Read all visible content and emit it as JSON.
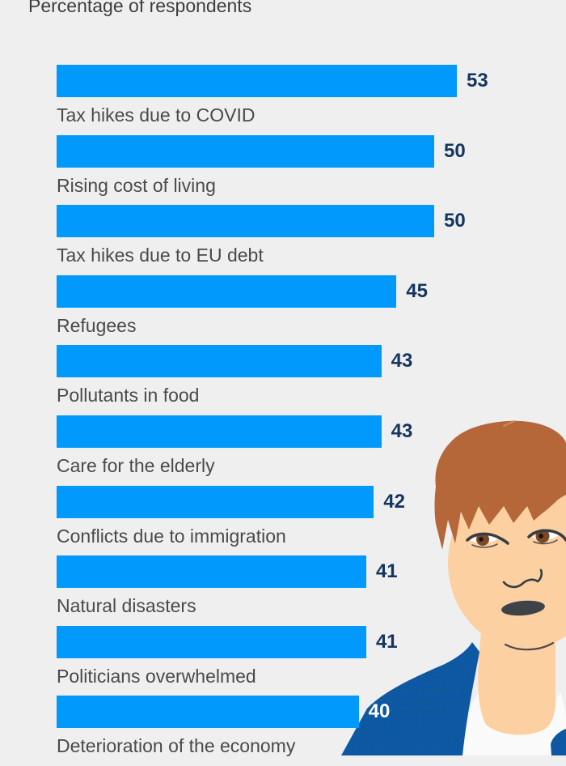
{
  "page": {
    "background_color": "#efeff0"
  },
  "chart_data": {
    "type": "bar",
    "orientation": "horizontal",
    "title": "Percentage of respondents",
    "categories": [
      "Tax hikes due to COVID",
      "Rising cost of living",
      "Tax hikes due to EU debt",
      "Refugees",
      "Pollutants in food",
      "Care for the elderly",
      "Conflicts due to immigration",
      "Natural disasters",
      "Politicians overwhelmed",
      "Deterioration of the economy"
    ],
    "values": [
      53,
      50,
      50,
      45,
      43,
      43,
      42,
      41,
      41,
      40
    ],
    "xlim": [
      0,
      60
    ],
    "grid": false,
    "legend": false,
    "value_labels_shown": true,
    "bar_color": "#0199fb",
    "value_label_color": "#15355e",
    "value_label_color_last": "#ffffff",
    "category_label_color": "#4a4a4a",
    "title_color": "#3d3d3d"
  },
  "illustration": {
    "name": "man-with-red-hair-looking-left",
    "colors": {
      "hair": "#b5673a",
      "hair_highlight": "#d08a5c",
      "skin": "#fcd0a0",
      "eye_white": "#fdfdfd",
      "iris": "#7a4a28",
      "pupil": "#1b120a",
      "line": "#373c43",
      "mouth": "#3e4348",
      "jacket": "#0b57ad",
      "jacket_pattern": "#24644c",
      "shirt": "#fafafa"
    }
  }
}
